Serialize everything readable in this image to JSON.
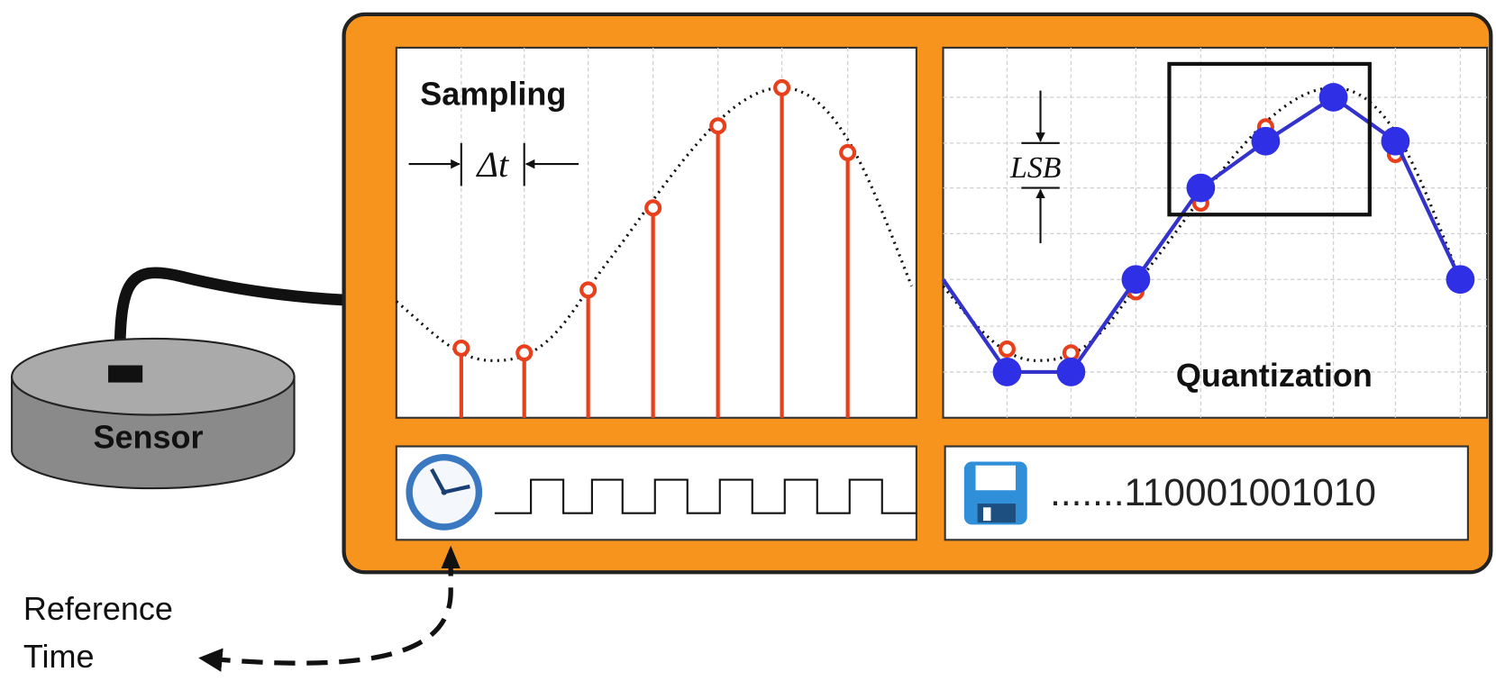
{
  "sampling": {
    "title": "Sampling",
    "interval": "Δt"
  },
  "quantization": {
    "title": "Quantization",
    "step": "LSB"
  },
  "sensor": {
    "label": "Sensor"
  },
  "storage": {
    "bits": ".......110001001010"
  },
  "reference": {
    "line1": "Reference",
    "line2": "Time"
  }
}
